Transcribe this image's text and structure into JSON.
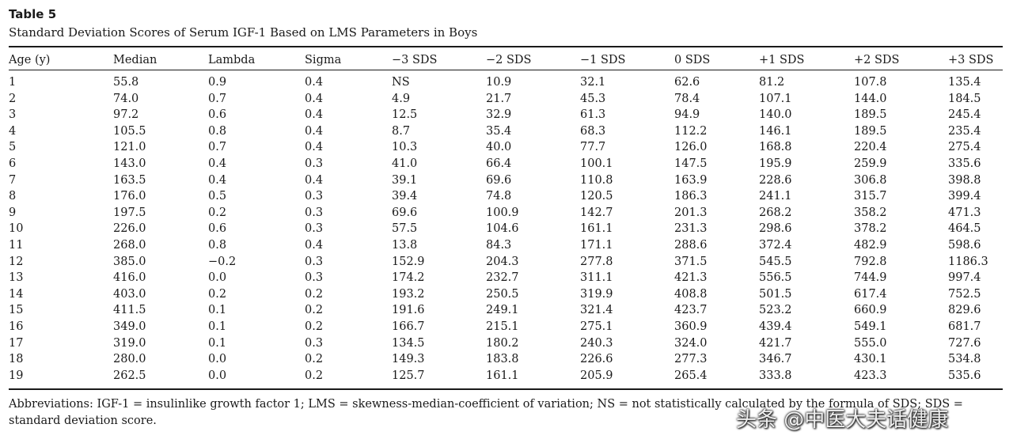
{
  "table": {
    "label": "Table 5",
    "caption": "Standard Deviation Scores of Serum IGF-1 Based on LMS Parameters in Boys",
    "headers": [
      "Age (y)",
      "Median",
      "Lambda",
      "Sigma",
      "−3 SDS",
      "−2 SDS",
      "−1 SDS",
      "0 SDS",
      "+1 SDS",
      "+2 SDS",
      "+3 SDS"
    ],
    "rows": [
      [
        "1",
        "55.8",
        "0.9",
        "0.4",
        "NS",
        "10.9",
        "32.1",
        "62.6",
        "81.2",
        "107.8",
        "135.4"
      ],
      [
        "2",
        "74.0",
        "0.7",
        "0.4",
        "4.9",
        "21.7",
        "45.3",
        "78.4",
        "107.1",
        "144.0",
        "184.5"
      ],
      [
        "3",
        "97.2",
        "0.6",
        "0.4",
        "12.5",
        "32.9",
        "61.3",
        "94.9",
        "140.0",
        "189.5",
        "245.4"
      ],
      [
        "4",
        "105.5",
        "0.8",
        "0.4",
        "8.7",
        "35.4",
        "68.3",
        "112.2",
        "146.1",
        "189.5",
        "235.4"
      ],
      [
        "5",
        "121.0",
        "0.7",
        "0.4",
        "10.3",
        "40.0",
        "77.7",
        "126.0",
        "168.8",
        "220.4",
        "275.4"
      ],
      [
        "6",
        "143.0",
        "0.4",
        "0.3",
        "41.0",
        "66.4",
        "100.1",
        "147.5",
        "195.9",
        "259.9",
        "335.6"
      ],
      [
        "7",
        "163.5",
        "0.4",
        "0.4",
        "39.1",
        "69.6",
        "110.8",
        "163.9",
        "228.6",
        "306.8",
        "398.8"
      ],
      [
        "8",
        "176.0",
        "0.5",
        "0.3",
        "39.4",
        "74.8",
        "120.5",
        "186.3",
        "241.1",
        "315.7",
        "399.4"
      ],
      [
        "9",
        "197.5",
        "0.2",
        "0.3",
        "69.6",
        "100.9",
        "142.7",
        "201.3",
        "268.2",
        "358.2",
        "471.3"
      ],
      [
        "10",
        "226.0",
        "0.6",
        "0.3",
        "57.5",
        "104.6",
        "161.1",
        "231.3",
        "298.6",
        "378.2",
        "464.5"
      ],
      [
        "11",
        "268.0",
        "0.8",
        "0.4",
        "13.8",
        "84.3",
        "171.1",
        "288.6",
        "372.4",
        "482.9",
        "598.6"
      ],
      [
        "12",
        "385.0",
        "−0.2",
        "0.3",
        "152.9",
        "204.3",
        "277.8",
        "371.5",
        "545.5",
        "792.8",
        "1186.3"
      ],
      [
        "13",
        "416.0",
        "0.0",
        "0.3",
        "174.2",
        "232.7",
        "311.1",
        "421.3",
        "556.5",
        "744.9",
        "997.4"
      ],
      [
        "14",
        "403.0",
        "0.2",
        "0.2",
        "193.2",
        "250.5",
        "319.9",
        "408.8",
        "501.5",
        "617.4",
        "752.5"
      ],
      [
        "15",
        "411.5",
        "0.1",
        "0.2",
        "191.6",
        "249.1",
        "321.4",
        "423.7",
        "523.2",
        "660.9",
        "829.6"
      ],
      [
        "16",
        "349.0",
        "0.1",
        "0.2",
        "166.7",
        "215.1",
        "275.1",
        "360.9",
        "439.4",
        "549.1",
        "681.7"
      ],
      [
        "17",
        "319.0",
        "0.1",
        "0.3",
        "134.5",
        "180.2",
        "240.3",
        "324.0",
        "421.7",
        "555.0",
        "727.6"
      ],
      [
        "18",
        "280.0",
        "0.0",
        "0.2",
        "149.3",
        "183.8",
        "226.6",
        "277.3",
        "346.7",
        "430.1",
        "534.8"
      ],
      [
        "19",
        "262.5",
        "0.0",
        "0.2",
        "125.7",
        "161.1",
        "205.9",
        "265.4",
        "333.8",
        "423.3",
        "535.6"
      ]
    ],
    "footnote": "Abbreviations: IGF-1 = insulinlike growth factor 1; LMS = skewness-median-coefficient of variation; NS = not statistically calculated by the formula of SDS; SDS = standard deviation score."
  },
  "watermark": "头条 @中医大夫话健康"
}
